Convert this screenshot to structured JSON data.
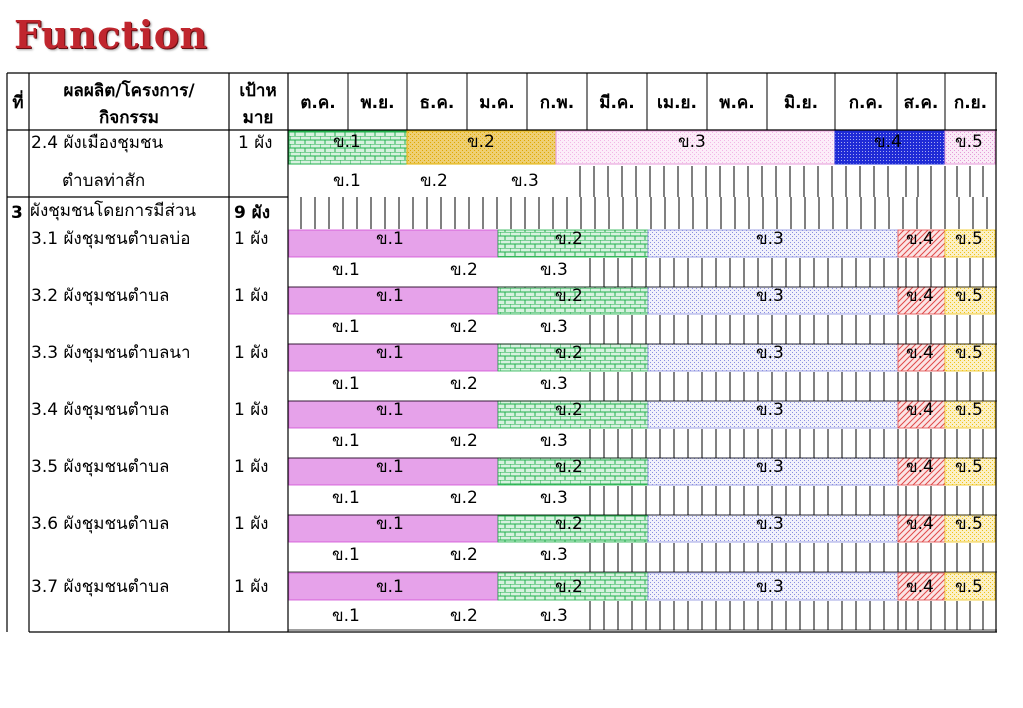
{
  "title": "Function",
  "header": {
    "col_no": "ที่",
    "col_product_line1": "ผลผลิต/โครงการ/",
    "col_product_line2": "กิจกรรม",
    "col_target_line1": "เป้าห",
    "col_target_line2": "มาย",
    "months": [
      "ต.ค.",
      "พ.ย.",
      "ธ.ค.",
      "ม.ค.",
      "ก.พ.",
      "มี.ค.",
      "เม.ย.",
      "พ.ค.",
      "มิ.ย.",
      "ก.ค.",
      "ส.ค.",
      "ก.ย."
    ]
  },
  "rows": {
    "r24": {
      "name_line1": "2.4 ผังเมืองชุมชน",
      "name_line2": "ตำบลท่าสัก",
      "target": "1 ผัง",
      "plan": [
        "ข.1",
        "ข.2",
        "ข.3",
        "ข.4",
        "ข.5"
      ],
      "actual": [
        "ข.1",
        "ข.2",
        "ข.3"
      ]
    },
    "section3": {
      "no": "3",
      "name": "ผังชุมชนโดยการมีส่วน",
      "target": "9 ผัง"
    },
    "items": [
      {
        "name": "3.1 ผังชุมชนตำบลบ่อ",
        "target": "1  ผัง",
        "plan": [
          "ข.1",
          "ข.2",
          "ข.3",
          "ข.4",
          "ข.5"
        ],
        "actual": [
          "ข.1",
          "ข.2",
          "ข.3"
        ]
      },
      {
        "name": "3.2 ผังชุมชนตำบล",
        "target": "1  ผัง",
        "plan": [
          "ข.1",
          "ข.2",
          "ข.3",
          "ข.4",
          "ข.5"
        ],
        "actual": [
          "ข.1",
          "ข.2",
          "ข.3"
        ]
      },
      {
        "name": "3.3 ผังชุมชนตำบลนา",
        "target": "1  ผัง",
        "plan": [
          "ข.1",
          "ข.2",
          "ข.3",
          "ข.4",
          "ข.5"
        ],
        "actual": [
          "ข.1",
          "ข.2",
          "ข.3"
        ]
      },
      {
        "name": "3.4 ผังชุมชนตำบล",
        "target": "1  ผัง",
        "plan": [
          "ข.1",
          "ข.2",
          "ข.3",
          "ข.4",
          "ข.5"
        ],
        "actual": [
          "ข.1",
          "ข.2",
          "ข.3"
        ]
      },
      {
        "name": "3.5 ผังชุมชนตำบล",
        "target": "1  ผัง",
        "plan": [
          "ข.1",
          "ข.2",
          "ข.3",
          "ข.4",
          "ข.5"
        ],
        "actual": [
          "ข.1",
          "ข.2",
          "ข.3"
        ]
      },
      {
        "name": "3.6 ผังชุมชนตำบล",
        "target": "1  ผัง",
        "plan": [
          "ข.1",
          "ข.2",
          "ข.3",
          "ข.4",
          "ข.5"
        ],
        "actual": [
          "ข.1",
          "ข.2",
          "ข.3"
        ]
      },
      {
        "name": "3.7 ผังชุมชนตำบล",
        "target": "1  ผัง",
        "plan": [
          "ข.1",
          "ข.2",
          "ข.3",
          "ข.4",
          "ข.5"
        ],
        "actual": [
          "ข.1",
          "ข.2",
          "ข.3"
        ]
      }
    ]
  },
  "colors": {
    "title": "#c0262e",
    "r24_phase1": "#22b14c",
    "r24_phase2": "#ffd43b",
    "r24_phase3": "#f2b6e6",
    "r24_phase4": "#1f2bd6",
    "r24_phase5": "#e59ad8",
    "phase1": "#d14fd6",
    "phase2": "#22b14c",
    "phase3": "#8a8fe0",
    "phase4": "#e04a4a",
    "phase5": "#f0c419"
  }
}
